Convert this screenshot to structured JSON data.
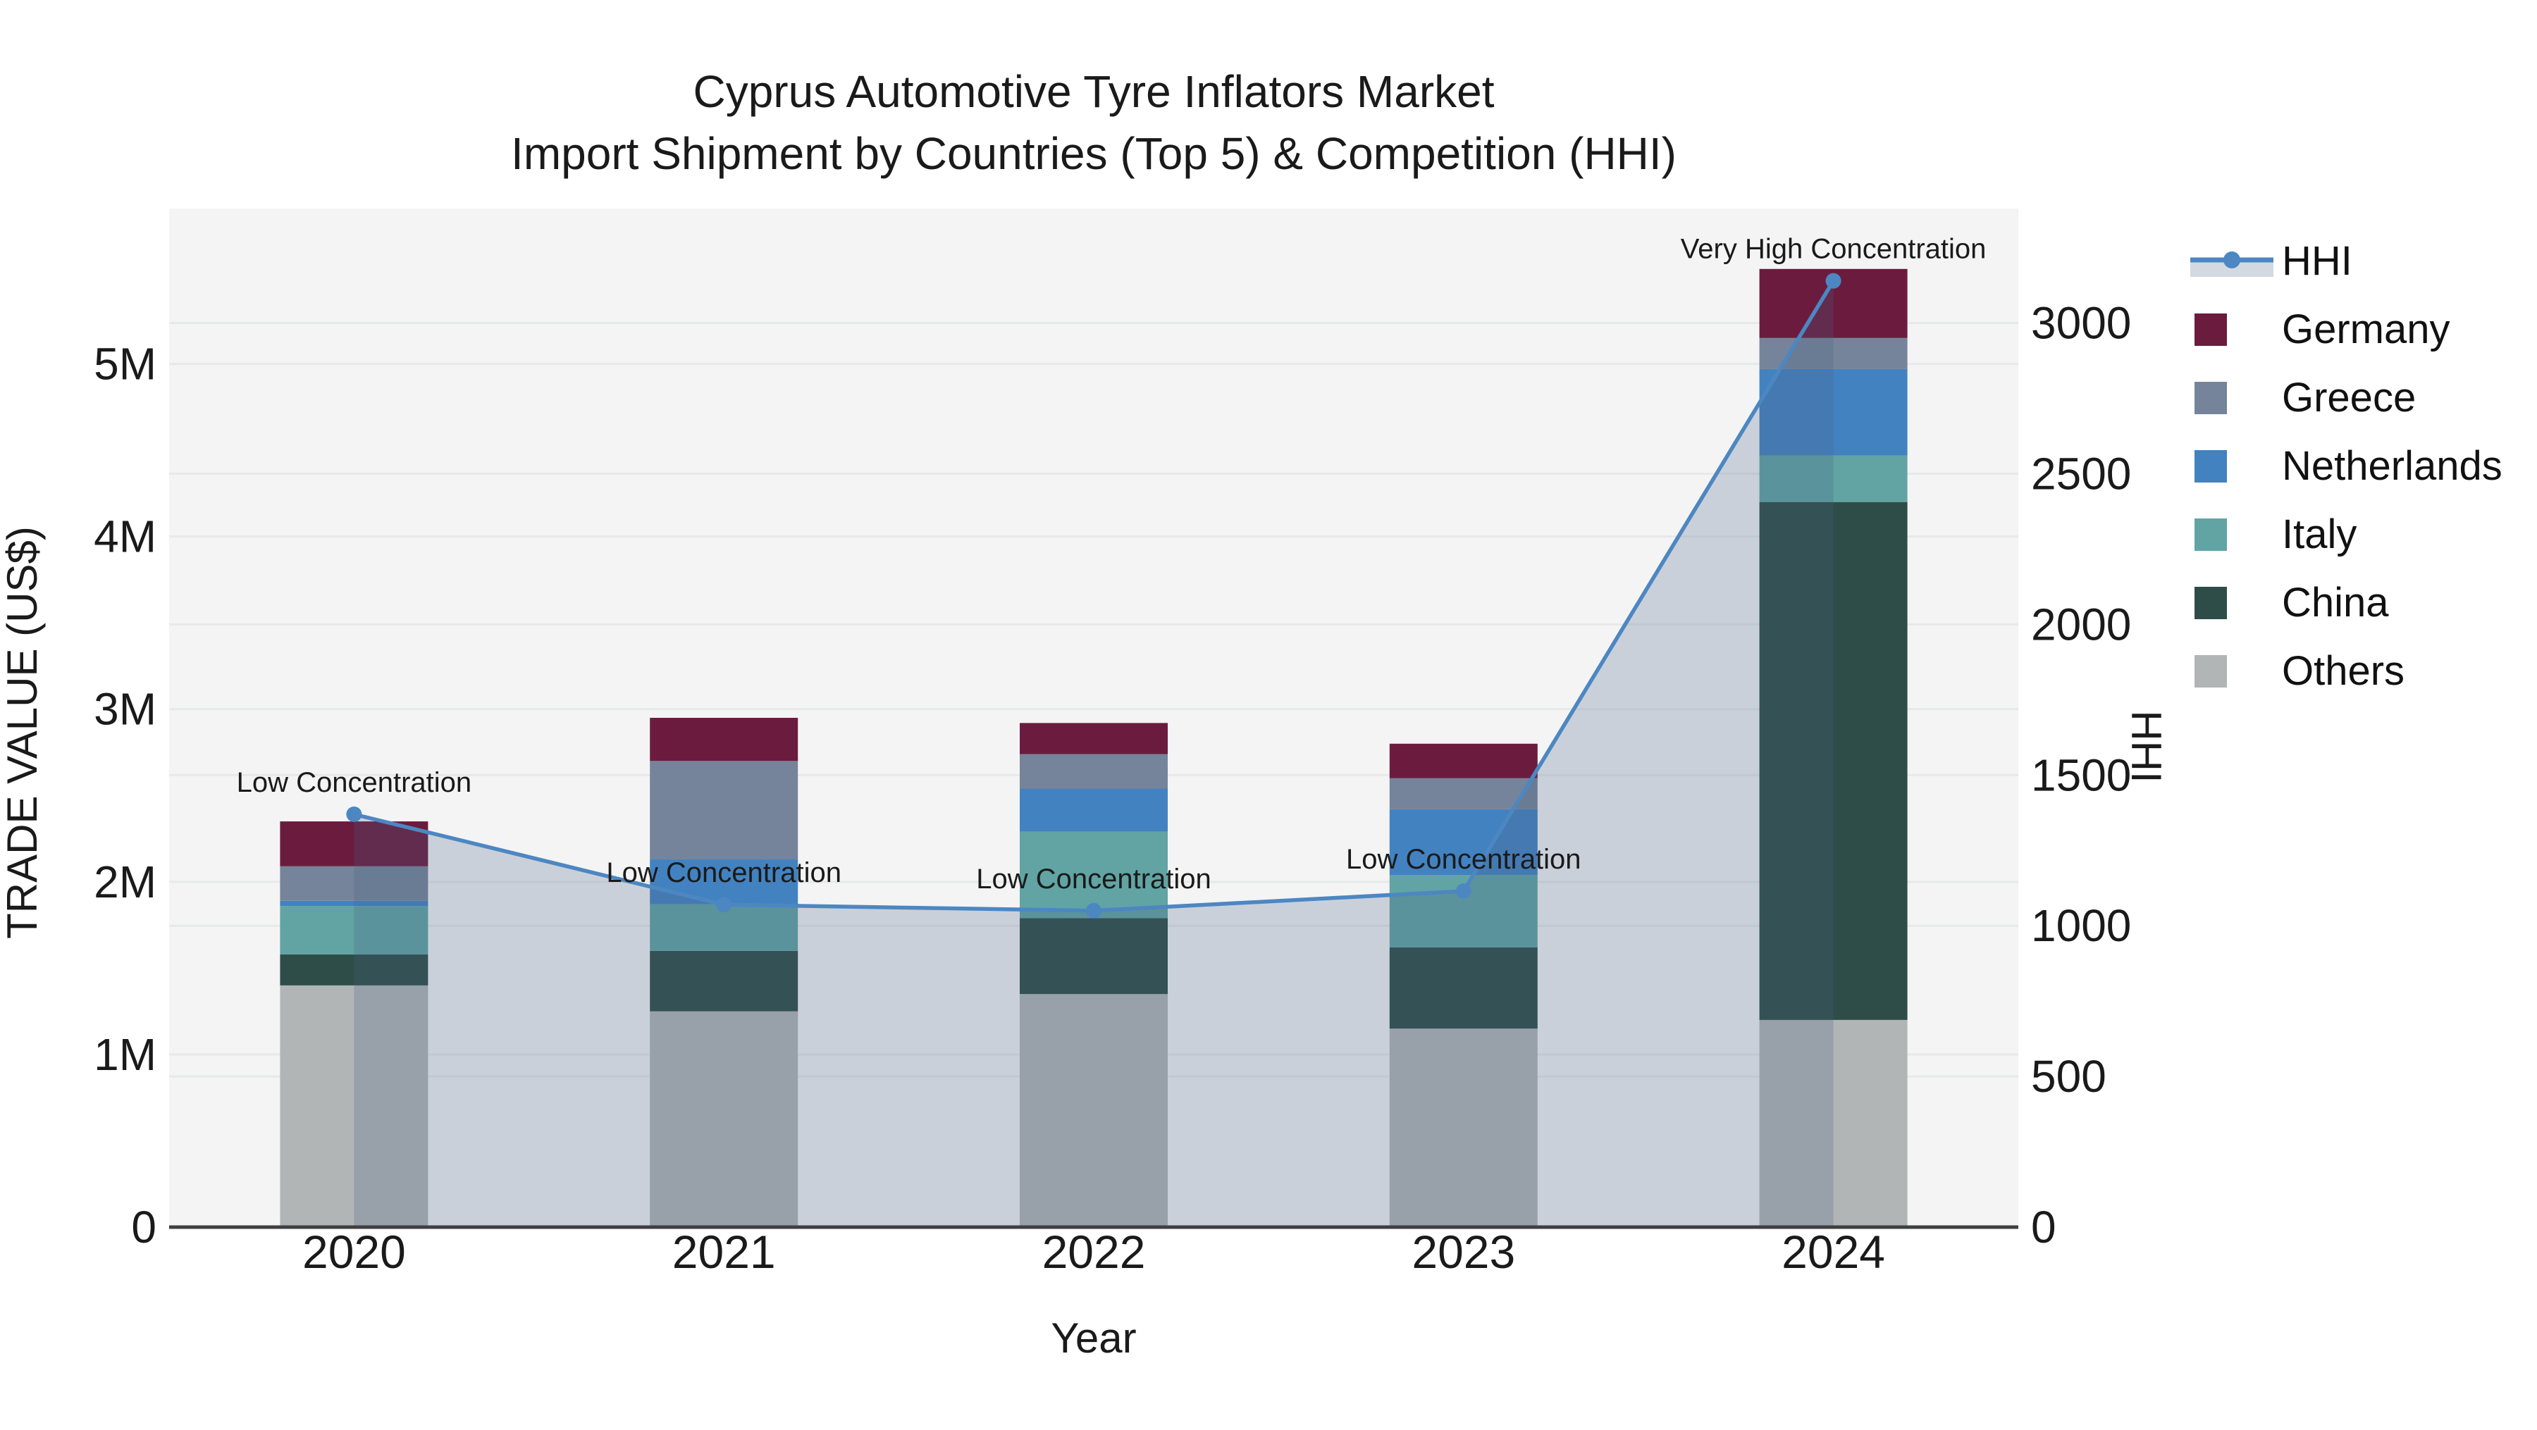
{
  "chart_data": {
    "type": "stacked_bar_line_combo",
    "title": "Cyprus Automotive Tyre Inflators Market",
    "subtitle": "Import Shipment by Countries (Top 5) & Competition (HHI)",
    "xlabel": "Year",
    "ylabel_left": "TRADE VALUE (US$)",
    "ylabel_right": "HHI",
    "categories": [
      "2020",
      "2021",
      "2022",
      "2023",
      "2024"
    ],
    "unit_left": "million US$",
    "series": [
      {
        "name": "Germany",
        "color": "#6b1c3e",
        "values_musd": [
          0.26,
          0.25,
          0.18,
          0.2,
          0.4
        ]
      },
      {
        "name": "Greece",
        "color": "#75849a",
        "values_musd": [
          0.2,
          0.57,
          0.2,
          0.18,
          0.18
        ]
      },
      {
        "name": "Netherlands",
        "color": "#4382c0",
        "values_musd": [
          0.03,
          0.26,
          0.25,
          0.38,
          0.5
        ]
      },
      {
        "name": "Italy",
        "color": "#61a4a3",
        "values_musd": [
          0.28,
          0.27,
          0.5,
          0.42,
          0.27
        ]
      },
      {
        "name": "China",
        "color": "#2e4d49",
        "values_musd": [
          0.18,
          0.35,
          0.44,
          0.47,
          3.0
        ]
      },
      {
        "name": "Others",
        "color": "#b2b5b6",
        "values_musd": [
          1.4,
          1.25,
          1.35,
          1.15,
          1.2
        ]
      }
    ],
    "bar_totals_musd": [
      2.35,
      2.95,
      2.92,
      2.8,
      5.55
    ],
    "line": {
      "name": "HHI",
      "color": "#4c87c2",
      "area_fill": "rgba(70,95,130,0.24)",
      "values": [
        1370,
        1070,
        1050,
        1115,
        3140
      ]
    },
    "annotations": [
      "Low Concentration",
      "Low Concentration",
      "Low Concentration",
      "Low Concentration",
      "Very High Concentration"
    ],
    "legend_order": [
      "HHI",
      "Germany",
      "Greece",
      "Netherlands",
      "Italy",
      "China",
      "Others"
    ],
    "y_left": {
      "ticks": [
        "0",
        "1M",
        "2M",
        "3M",
        "4M",
        "5M"
      ],
      "tick_values": [
        0,
        1,
        2,
        3,
        4,
        5
      ],
      "max": 5.9
    },
    "y_right": {
      "ticks": [
        "0",
        "500",
        "1000",
        "1500",
        "2000",
        "2500",
        "3000"
      ],
      "tick_values": [
        0,
        500,
        1000,
        1500,
        2000,
        2500,
        3000
      ],
      "max": 3380
    },
    "layout_hints": {
      "plot_bg": "#f4f4f5",
      "gridline_color": "#e7e9e9",
      "spine_color": "#3f3f3f",
      "grid": "both-axes-horizontal",
      "legend_position": "right-outside"
    }
  }
}
